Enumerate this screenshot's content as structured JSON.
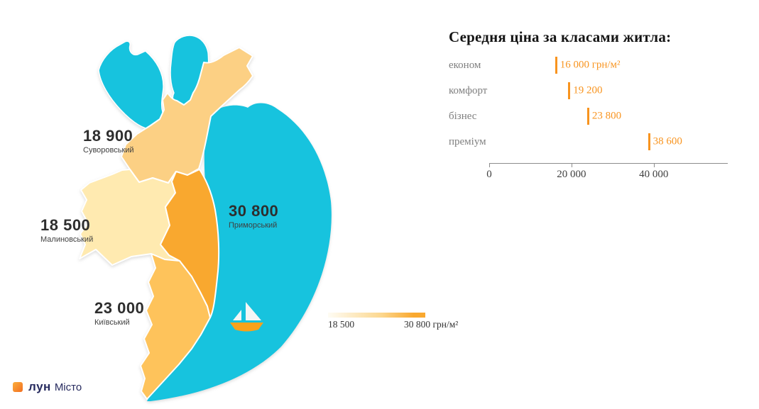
{
  "map": {
    "labels": [
      {
        "price": "18 900",
        "name": "Суворовський"
      },
      {
        "price": "18 500",
        "name": "Малиновський"
      },
      {
        "price": "30 800",
        "name": "Приморський"
      },
      {
        "price": "23 000",
        "name": "Київський"
      }
    ],
    "colors": {
      "sea": "#17C3DE",
      "suvorovskyi": "#FCD084",
      "malynovskyi": "#FFEAB0",
      "prymorskyi": "#F9A82F",
      "kyivskyi": "#FEC35B",
      "border": "#FFFFFF",
      "boat_sail": "#F3F6F6",
      "boat_hull": "#F9A21B"
    },
    "legend": {
      "min": "18 500",
      "max": "30 800 грн/м²",
      "min_color": "#FEFCF4",
      "max_color": "#F9A82F"
    }
  },
  "chart_data": {
    "type": "bar",
    "title": "Середня ціна за класами житла:",
    "categories": [
      "економ",
      "комфорт",
      "бізнес",
      "преміум"
    ],
    "values": [
      16000,
      19200,
      23800,
      38600
    ],
    "value_labels": [
      "16 000 грн/м²",
      "19 200",
      "23 800",
      "38 600"
    ],
    "xlabel": "",
    "ylabel": "",
    "xlim": [
      0,
      58000
    ],
    "xticks": [
      0,
      20000,
      40000
    ],
    "xtick_labels": [
      "0",
      "20 000",
      "40 000"
    ],
    "grid": false,
    "legend_position": "none",
    "marker_color": "#F8941F",
    "value_color": "#F8941F",
    "category_color": "#7F7F7F"
  },
  "logo": {
    "brand": "лун",
    "product": "Місто"
  }
}
